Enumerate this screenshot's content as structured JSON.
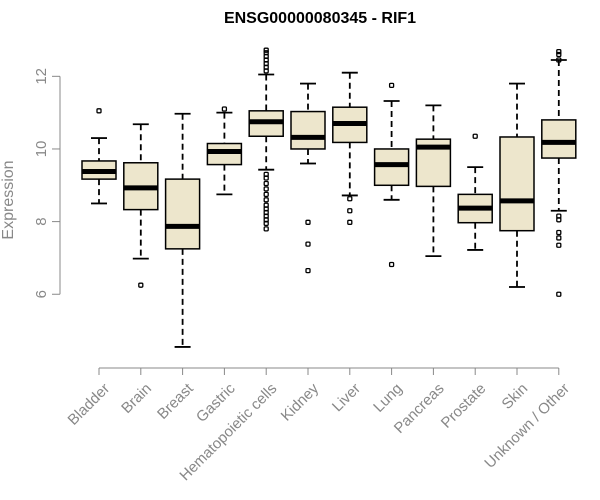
{
  "chart_data": {
    "type": "boxplot",
    "title": "ENSG00000080345 - RIF1",
    "ylabel": "Expression",
    "xlabel": "",
    "ylim": [
      4.3,
      13.0
    ],
    "yticks": [
      6,
      8,
      10,
      12
    ],
    "grid": false,
    "categories": [
      "Bladder",
      "Brain",
      "Breast",
      "Gastric",
      "Hematopoietic cells",
      "Kidney",
      "Liver",
      "Lung",
      "Pancreas",
      "Prostate",
      "Skin",
      "Unknown / Other"
    ],
    "boxes": [
      {
        "category": "Bladder",
        "whisker_low": 8.5,
        "q1": 9.17,
        "median": 9.38,
        "q3": 9.67,
        "whisker_high": 10.3,
        "outliers": [
          11.05
        ]
      },
      {
        "category": "Brain",
        "whisker_low": 6.98,
        "q1": 8.33,
        "median": 8.93,
        "q3": 9.62,
        "whisker_high": 10.68,
        "outliers": [
          6.25
        ]
      },
      {
        "category": "Breast",
        "whisker_low": 4.55,
        "q1": 7.25,
        "median": 7.87,
        "q3": 9.17,
        "whisker_high": 10.97,
        "outliers": []
      },
      {
        "category": "Gastric",
        "whisker_low": 8.75,
        "q1": 9.57,
        "median": 9.93,
        "q3": 10.15,
        "whisker_high": 11.0,
        "outliers": [
          11.1
        ]
      },
      {
        "category": "Hematopoietic cells",
        "whisker_low": 9.43,
        "q1": 10.35,
        "median": 10.75,
        "q3": 11.05,
        "whisker_high": 12.05,
        "outliers": [
          7.8,
          7.95,
          8.05,
          8.15,
          8.25,
          8.35,
          8.45,
          8.6,
          8.75,
          8.9,
          9.05,
          9.2,
          9.3,
          12.15,
          12.25,
          12.35,
          12.45,
          12.55,
          12.65,
          12.72
        ]
      },
      {
        "category": "Kidney",
        "whisker_low": 9.6,
        "q1": 10.0,
        "median": 10.32,
        "q3": 11.03,
        "whisker_high": 11.8,
        "outliers": [
          6.65,
          7.38,
          7.98
        ]
      },
      {
        "category": "Liver",
        "whisker_low": 8.72,
        "q1": 10.18,
        "median": 10.7,
        "q3": 11.15,
        "whisker_high": 12.1,
        "outliers": [
          7.98,
          8.3,
          8.63
        ]
      },
      {
        "category": "Lung",
        "whisker_low": 8.6,
        "q1": 9.0,
        "median": 9.57,
        "q3": 10.0,
        "whisker_high": 11.32,
        "outliers": [
          6.82,
          11.75
        ]
      },
      {
        "category": "Pancreas",
        "whisker_low": 7.05,
        "q1": 8.97,
        "median": 10.05,
        "q3": 10.27,
        "whisker_high": 11.2,
        "outliers": []
      },
      {
        "category": "Prostate",
        "whisker_low": 7.22,
        "q1": 7.97,
        "median": 8.37,
        "q3": 8.75,
        "whisker_high": 9.5,
        "outliers": [
          10.35
        ]
      },
      {
        "category": "Skin",
        "whisker_low": 6.2,
        "q1": 7.75,
        "median": 8.57,
        "q3": 10.33,
        "whisker_high": 11.8,
        "outliers": []
      },
      {
        "category": "Unknown / Other",
        "whisker_low": 8.3,
        "q1": 9.75,
        "median": 10.18,
        "q3": 10.8,
        "whisker_high": 12.45,
        "outliers": [
          6.0,
          7.35,
          7.55,
          7.7,
          8.05,
          8.15,
          12.45,
          12.6,
          12.68
        ]
      }
    ],
    "colors": {
      "box_fill": "#ede6cc",
      "box_stroke": "#000000",
      "axis": "#888888",
      "text": "#888888",
      "title": "#000000"
    }
  }
}
